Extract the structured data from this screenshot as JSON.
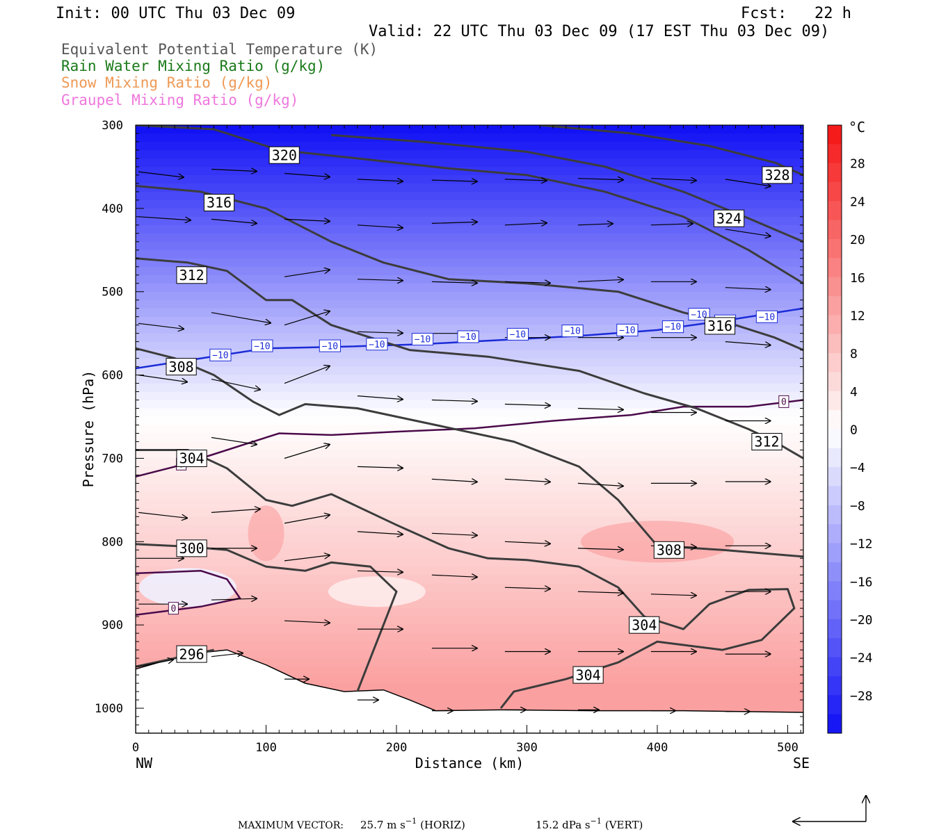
{
  "header": {
    "init": "Init: 00 UTC Thu 03 Dec 09",
    "fcst": "Fcst:   22 h",
    "valid": "Valid: 22 UTC Thu 03 Dec 09 (17 EST Thu 03 Dec 09)"
  },
  "legend": [
    {
      "text": "Equivalent Potential Temperature (K)",
      "color": "#555555"
    },
    {
      "text": "Rain Water Mixing Ratio (g/kg)",
      "color": "#1a7a1a"
    },
    {
      "text": "Snow Mixing Ratio (g/kg)",
      "color": "#ee9955"
    },
    {
      "text": "Graupel Mixing Ratio (g/kg)",
      "color": "#ee77dd"
    }
  ],
  "chart_data": {
    "type": "cross-section",
    "xlabel": "Distance (km)",
    "ylabel": "Pressure (hPa)",
    "xlim": [
      0,
      512
    ],
    "ylim": [
      1030,
      300
    ],
    "x_ticks": [
      "0",
      "100",
      "200",
      "300",
      "400",
      "500"
    ],
    "x_tick_values": [
      0,
      100,
      200,
      300,
      400,
      500
    ],
    "y_ticks": [
      "300",
      "400",
      "500",
      "600",
      "700",
      "800",
      "900",
      "1000"
    ],
    "y_tick_values": [
      300,
      400,
      500,
      600,
      700,
      800,
      900,
      1000
    ],
    "x_end_labels": {
      "left": "NW",
      "right": "SE"
    },
    "colorbar": {
      "unit": "°C",
      "ticks": [
        "28",
        "24",
        "20",
        "16",
        "12",
        "8",
        "4",
        "0",
        "−4",
        "−8",
        "−12",
        "−16",
        "−20",
        "−24",
        "−28"
      ],
      "tick_values": [
        28,
        24,
        20,
        16,
        12,
        8,
        4,
        0,
        -4,
        -8,
        -12,
        -16,
        -20,
        -24,
        -28
      ],
      "range": [
        -32,
        32
      ]
    },
    "terrain": [
      [
        0,
        953
      ],
      [
        40,
        935
      ],
      [
        70,
        930
      ],
      [
        100,
        948
      ],
      [
        130,
        970
      ],
      [
        160,
        980
      ],
      [
        190,
        978
      ],
      [
        210,
        990
      ],
      [
        230,
        1003
      ],
      [
        280,
        1002
      ],
      [
        350,
        1003
      ],
      [
        420,
        1003
      ],
      [
        512,
        1005
      ]
    ],
    "theta_e_contours": [
      {
        "label": "296",
        "points": [
          [
            0,
            950
          ],
          [
            30,
            940
          ],
          [
            60,
            930
          ]
        ],
        "labels": [
          [
            43,
            935
          ]
        ]
      },
      {
        "label": "300",
        "points": [
          [
            0,
            803
          ],
          [
            40,
            806
          ],
          [
            70,
            810
          ],
          [
            100,
            830
          ],
          [
            130,
            835
          ],
          [
            150,
            825
          ],
          [
            180,
            830
          ],
          [
            200,
            860
          ],
          [
            190,
            900
          ],
          [
            180,
            940
          ],
          [
            170,
            980
          ]
        ],
        "labels": [
          [
            43,
            808
          ]
        ]
      },
      {
        "label": "304",
        "points": [
          [
            0,
            690
          ],
          [
            40,
            690
          ],
          [
            70,
            712
          ],
          [
            100,
            750
          ],
          [
            120,
            757
          ],
          [
            150,
            743
          ],
          [
            200,
            780
          ],
          [
            240,
            808
          ],
          [
            270,
            820
          ],
          [
            300,
            822
          ],
          [
            340,
            830
          ],
          [
            370,
            855
          ],
          [
            390,
            890
          ],
          [
            420,
            905
          ],
          [
            440,
            875
          ],
          [
            470,
            858
          ],
          [
            500,
            857
          ],
          [
            505,
            880
          ],
          [
            480,
            918
          ],
          [
            450,
            930
          ],
          [
            400,
            920
          ],
          [
            370,
            945
          ],
          [
            330,
            965
          ],
          [
            290,
            980
          ],
          [
            280,
            1000
          ]
        ],
        "labels": [
          [
            43,
            700
          ],
          [
            390,
            900
          ],
          [
            347,
            960
          ]
        ]
      },
      {
        "label": "308",
        "points": [
          [
            0,
            568
          ],
          [
            30,
            580
          ],
          [
            60,
            600
          ],
          [
            90,
            632
          ],
          [
            110,
            648
          ],
          [
            130,
            635
          ],
          [
            170,
            640
          ],
          [
            230,
            660
          ],
          [
            290,
            680
          ],
          [
            340,
            710
          ],
          [
            370,
            750
          ],
          [
            400,
            805
          ],
          [
            450,
            810
          ],
          [
            512,
            818
          ]
        ],
        "labels": [
          [
            35,
            590
          ],
          [
            409,
            810
          ]
        ]
      },
      {
        "label": "312",
        "points": [
          [
            0,
            460
          ],
          [
            40,
            465
          ],
          [
            70,
            475
          ],
          [
            100,
            510
          ],
          [
            120,
            510
          ],
          [
            150,
            540
          ],
          [
            210,
            570
          ],
          [
            270,
            578
          ],
          [
            340,
            595
          ],
          [
            390,
            622
          ],
          [
            430,
            640
          ],
          [
            470,
            665
          ],
          [
            490,
            680
          ],
          [
            512,
            700
          ]
        ],
        "labels": [
          [
            43,
            480
          ],
          [
            484,
            680
          ]
        ]
      },
      {
        "label": "316",
        "points": [
          [
            0,
            373
          ],
          [
            50,
            380
          ],
          [
            100,
            400
          ],
          [
            150,
            440
          ],
          [
            190,
            465
          ],
          [
            240,
            485
          ],
          [
            300,
            490
          ],
          [
            370,
            500
          ],
          [
            420,
            525
          ],
          [
            460,
            540
          ],
          [
            490,
            555
          ],
          [
            512,
            570
          ]
        ],
        "labels": [
          [
            64,
            393
          ],
          [
            448,
            541
          ]
        ]
      },
      {
        "label": "320",
        "points": [
          [
            0,
            300
          ],
          [
            60,
            305
          ],
          [
            110,
            330
          ],
          [
            170,
            340
          ],
          [
            240,
            352
          ],
          [
            300,
            360
          ],
          [
            360,
            380
          ],
          [
            420,
            410
          ],
          [
            470,
            450
          ],
          [
            512,
            490
          ]
        ],
        "labels": [
          [
            114,
            336
          ]
        ]
      },
      {
        "label": "324",
        "points": [
          [
            150,
            312
          ],
          [
            220,
            320
          ],
          [
            300,
            332
          ],
          [
            360,
            350
          ],
          [
            420,
            380
          ],
          [
            470,
            412
          ],
          [
            512,
            440
          ]
        ],
        "labels": [
          [
            455,
            412
          ]
        ]
      },
      {
        "label": "328",
        "points": [
          [
            310,
            300
          ],
          [
            380,
            310
          ],
          [
            440,
            325
          ],
          [
            490,
            345
          ],
          [
            512,
            360
          ]
        ],
        "labels": [
          [
            492,
            360
          ]
        ]
      }
    ],
    "temperature_contours": [
      {
        "label": "−10",
        "color": "#1a2bd6",
        "points": [
          [
            0,
            592
          ],
          [
            50,
            580
          ],
          [
            100,
            568
          ],
          [
            160,
            566
          ],
          [
            220,
            563
          ],
          [
            280,
            558
          ],
          [
            340,
            553
          ],
          [
            400,
            546
          ],
          [
            450,
            535
          ],
          [
            512,
            520
          ]
        ],
        "labels": [
          [
            65,
            576
          ],
          [
            97,
            565
          ],
          [
            149,
            565
          ],
          [
            185,
            563
          ],
          [
            220,
            557
          ],
          [
            255,
            554
          ],
          [
            293,
            551
          ],
          [
            335,
            547
          ],
          [
            377,
            546
          ],
          [
            412,
            542
          ],
          [
            452,
            535
          ],
          [
            484,
            530
          ],
          [
            432,
            527
          ]
        ]
      },
      {
        "label": "0",
        "color": "#4a0a4a",
        "points": [
          [
            0,
            722
          ],
          [
            30,
            710
          ],
          [
            60,
            695
          ],
          [
            110,
            670
          ],
          [
            150,
            672
          ],
          [
            200,
            668
          ],
          [
            260,
            664
          ],
          [
            320,
            655
          ],
          [
            380,
            648
          ],
          [
            420,
            638
          ],
          [
            470,
            638
          ],
          [
            512,
            630
          ]
        ],
        "labels": [
          [
            35,
            707
          ],
          [
            497,
            632
          ]
        ]
      },
      {
        "label": "0",
        "color": "#4a0a4a",
        "points": [
          [
            0,
            838
          ],
          [
            50,
            835
          ],
          [
            70,
            845
          ],
          [
            80,
            868
          ],
          [
            50,
            878
          ],
          [
            0,
            888
          ]
        ],
        "labels": [
          [
            29,
            880
          ]
        ]
      }
    ],
    "vectors": [
      [
        0,
        356,
        0.65,
        0.08
      ],
      [
        56,
        353,
        0.65,
        0.03
      ],
      [
        112,
        358,
        0.65,
        0.05
      ],
      [
        168,
        365,
        0.65,
        0.03
      ],
      [
        225,
        366,
        0.65,
        0.02
      ],
      [
        281,
        365,
        0.6,
        0.02
      ],
      [
        337,
        364,
        0.65,
        0.02
      ],
      [
        393,
        364,
        0.65,
        0.03
      ],
      [
        450,
        365,
        0.65,
        0.1
      ],
      [
        0,
        410,
        0.75,
        0.05
      ],
      [
        56,
        413,
        0.65,
        0.06
      ],
      [
        112,
        413,
        0.65,
        0.03
      ],
      [
        168,
        420,
        0.65,
        0.04
      ],
      [
        225,
        418,
        0.65,
        -0.02
      ],
      [
        281,
        420,
        0.6,
        -0.03
      ],
      [
        337,
        420,
        0.5,
        -0.02
      ],
      [
        393,
        420,
        0.6,
        -0.02
      ],
      [
        450,
        425,
        0.65,
        0.1
      ],
      [
        112,
        482,
        0.65,
        -0.1
      ],
      [
        168,
        485,
        0.65,
        0.02
      ],
      [
        225,
        488,
        0.65,
        0.02
      ],
      [
        281,
        488,
        0.65,
        0.02
      ],
      [
        337,
        488,
        0.65,
        -0.03
      ],
      [
        393,
        488,
        0.65,
        0
      ],
      [
        450,
        495,
        0.65,
        0.03
      ],
      [
        0,
        538,
        0.65,
        0.08
      ],
      [
        56,
        525,
        0.85,
        0.15
      ],
      [
        112,
        540,
        0.65,
        -0.2
      ],
      [
        168,
        548,
        0.65,
        0.02
      ],
      [
        225,
        550,
        0.65,
        0
      ],
      [
        281,
        555,
        0.65,
        0
      ],
      [
        337,
        555,
        0.65,
        0
      ],
      [
        393,
        555,
        0.65,
        0
      ],
      [
        450,
        560,
        0.65,
        0.05
      ],
      [
        0,
        600,
        0.7,
        0.1
      ],
      [
        56,
        605,
        0.7,
        0.15
      ],
      [
        112,
        610,
        0.65,
        -0.25
      ],
      [
        168,
        625,
        0.65,
        0.05
      ],
      [
        225,
        630,
        0.65,
        0.02
      ],
      [
        281,
        635,
        0.65,
        0.02
      ],
      [
        337,
        640,
        0.65,
        0.02
      ],
      [
        393,
        645,
        0.65,
        0
      ],
      [
        450,
        655,
        0.65,
        0
      ],
      [
        56,
        675,
        0.65,
        0.1
      ],
      [
        112,
        700,
        0.65,
        -0.2
      ],
      [
        168,
        710,
        0.65,
        0.02
      ],
      [
        225,
        725,
        0.65,
        0.04
      ],
      [
        281,
        725,
        0.65,
        0.04
      ],
      [
        337,
        730,
        0.65,
        0.04
      ],
      [
        393,
        730,
        0.65,
        0
      ],
      [
        450,
        728,
        0.65,
        0
      ],
      [
        0,
        765,
        0.7,
        0.08
      ],
      [
        56,
        765,
        0.7,
        -0.05
      ],
      [
        112,
        778,
        0.65,
        -0.12
      ],
      [
        168,
        788,
        0.65,
        0.04
      ],
      [
        225,
        790,
        0.65,
        0.03
      ],
      [
        281,
        800,
        0.65,
        0.03
      ],
      [
        337,
        808,
        0.65,
        0.02
      ],
      [
        393,
        805,
        0.65,
        0.02
      ],
      [
        450,
        805,
        0.65,
        0
      ],
      [
        0,
        820,
        0.65,
        0
      ],
      [
        56,
        808,
        0.65,
        0
      ],
      [
        112,
        823,
        0.65,
        -0.08
      ],
      [
        168,
        835,
        0.65,
        0.02
      ],
      [
        225,
        840,
        0.65,
        0.03
      ],
      [
        281,
        855,
        0.65,
        0.02
      ],
      [
        337,
        860,
        0.65,
        0.02
      ],
      [
        393,
        863,
        0.65,
        0.02
      ],
      [
        450,
        860,
        0.65,
        0
      ],
      [
        0,
        875,
        0.7,
        0
      ],
      [
        56,
        870,
        0.65,
        -0.02
      ],
      [
        112,
        895,
        0.65,
        0.03
      ],
      [
        168,
        905,
        0.65,
        0
      ],
      [
        225,
        928,
        0.65,
        0
      ],
      [
        281,
        932,
        0.65,
        0
      ],
      [
        337,
        932,
        0.65,
        0
      ],
      [
        393,
        932,
        0.65,
        0
      ],
      [
        450,
        935,
        0.65,
        0
      ],
      [
        0,
        950,
        0.5,
        -0.1
      ],
      [
        56,
        938,
        0.45,
        -0.05
      ],
      [
        112,
        965,
        0.35,
        0
      ],
      [
        168,
        990,
        0.3,
        0
      ],
      [
        225,
        1003,
        0.3,
        0
      ],
      [
        281,
        1002,
        0.3,
        0
      ],
      [
        337,
        1002,
        0.3,
        0
      ],
      [
        393,
        1003,
        0.35,
        0
      ],
      [
        450,
        1004,
        0.35,
        0
      ]
    ]
  },
  "footer": {
    "max_vector_label": "MAXIMUM VECTOR:",
    "horiz_value": "25.7 m s",
    "horiz_exp": "−1",
    "horiz_tag": "(HORIZ)",
    "vert_value": "15.2 dPa s",
    "vert_exp": "−1",
    "vert_tag": "(VERT)"
  }
}
